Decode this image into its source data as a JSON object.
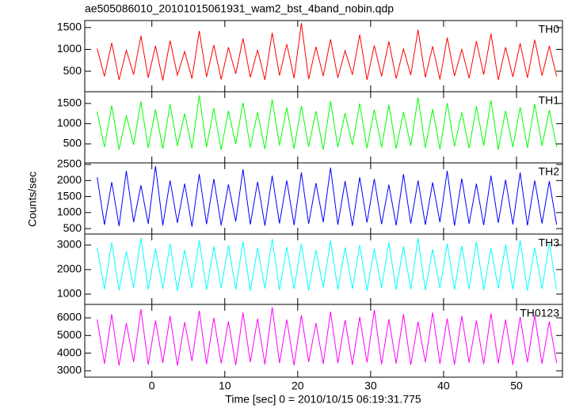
{
  "chart_data": {
    "type": "line",
    "title": "ae505086010_20101015061931_wam2_bst_4band_nobin.qdp",
    "xlabel": "Time [sec] 0 = 2010/10/15 06:19:31.775",
    "ylabel": "Counts/sec",
    "xlim": [
      -9.2,
      56.3
    ],
    "xticks": [
      0,
      10,
      20,
      30,
      40,
      50
    ],
    "x": [
      -7.5,
      -6.5,
      -5.5,
      -4.5,
      -3.5,
      -2.5,
      -1.5,
      -0.5,
      0.5,
      1.5,
      2.5,
      3.5,
      4.5,
      5.5,
      6.5,
      7.5,
      8.5,
      9.5,
      10.5,
      11.5,
      12.5,
      13.5,
      14.5,
      15.5,
      16.5,
      17.5,
      18.5,
      19.5,
      20.5,
      21.5,
      22.5,
      23.5,
      24.5,
      25.5,
      26.5,
      27.5,
      28.5,
      29.5,
      30.5,
      31.5,
      32.5,
      33.5,
      34.5,
      35.5,
      36.5,
      37.5,
      38.5,
      39.5,
      40.5,
      41.5,
      42.5,
      43.5,
      44.5,
      45.5,
      46.5,
      47.5,
      48.5,
      49.5,
      50.5,
      51.5,
      52.5,
      53.5,
      54.5,
      55.5
    ],
    "series": [
      {
        "name": "TH0",
        "color": "#ff0000",
        "ylim": [
          30,
          1660
        ],
        "yticks": [
          500,
          1000,
          1500
        ],
        "values": [
          1020,
          380,
          1150,
          300,
          980,
          420,
          1310,
          350,
          1080,
          290,
          1200,
          410,
          950,
          330,
          1420,
          370,
          1100,
          310,
          1050,
          440,
          1250,
          360,
          990,
          300,
          1380,
          400,
          1120,
          340,
          1600,
          320,
          1060,
          390,
          1230,
          350,
          970,
          420,
          1340,
          300,
          1090,
          380,
          1180,
          330,
          1010,
          410,
          1450,
          360,
          1070,
          310,
          1270,
          390,
          1000,
          340,
          1190,
          420,
          1360,
          300,
          1050,
          370,
          1140,
          350,
          1220,
          400,
          1080,
          380
        ]
      },
      {
        "name": "TH1",
        "color": "#00ff00",
        "ylim": [
          30,
          1790
        ],
        "yticks": [
          500,
          1000,
          1500
        ],
        "values": [
          1300,
          420,
          1450,
          360,
          1200,
          480,
          1550,
          400,
          1350,
          380,
          1480,
          450,
          1250,
          390,
          1700,
          420,
          1380,
          350,
          1320,
          500,
          1520,
          410,
          1280,
          370,
          1600,
          460,
          1400,
          380,
          1440,
          430,
          1310,
          360,
          1560,
          420,
          1260,
          470,
          1500,
          390,
          1350,
          410,
          1470,
          380,
          1290,
          450,
          1650,
          400,
          1360,
          370,
          1510,
          440,
          1280,
          390,
          1430,
          460,
          1580,
          360,
          1320,
          420,
          1410,
          400,
          1490,
          450,
          1340,
          420
        ]
      },
      {
        "name": "TH2",
        "color": "#0000ff",
        "ylim": [
          330,
          2550
        ],
        "yticks": [
          500,
          1000,
          1500,
          2000,
          2500
        ],
        "values": [
          2100,
          620,
          1950,
          580,
          2300,
          700,
          1850,
          650,
          2450,
          600,
          2000,
          680,
          1900,
          560,
          2200,
          640,
          2050,
          600,
          1880,
          720,
          2350,
          630,
          1960,
          590,
          2150,
          660,
          2000,
          610,
          2250,
          650,
          1920,
          700,
          2400,
          620,
          1980,
          580,
          2100,
          690,
          2050,
          640,
          1870,
          600,
          2200,
          660,
          2000,
          620,
          1940,
          700,
          2300,
          590,
          2060,
          650,
          1900,
          610,
          2150,
          680,
          2020,
          630,
          2250,
          600,
          2000,
          660,
          1980,
          620
        ]
      },
      {
        "name": "TH3",
        "color": "#00ffff",
        "ylim": [
          580,
          3450
        ],
        "yticks": [
          1000,
          2000,
          3000
        ],
        "values": [
          2900,
          1200,
          3100,
          1150,
          2750,
          1250,
          3300,
          1180,
          2850,
          1220,
          3050,
          1130,
          2800,
          1260,
          3200,
          1170,
          2950,
          1240,
          3000,
          1190,
          3150,
          1140,
          2880,
          1230,
          3250,
          1160,
          2920,
          1210,
          3050,
          1150,
          2800,
          1270,
          3180,
          1190,
          2900,
          1220,
          3000,
          1140,
          2850,
          1250,
          3100,
          1170,
          2950,
          1200,
          3280,
          1150,
          2830,
          1240,
          3060,
          1180,
          2970,
          1210,
          3140,
          1160,
          2880,
          1230,
          3020,
          1190,
          3200,
          1150,
          2900,
          1220,
          3080,
          1180
        ]
      },
      {
        "name": "TH0123",
        "color": "#ff00ff",
        "ylim": [
          2640,
          6760
        ],
        "yticks": [
          3000,
          4000,
          5000,
          6000
        ],
        "values": [
          5900,
          3400,
          6200,
          3300,
          5700,
          3500,
          6500,
          3350,
          5850,
          3450,
          6100,
          3300,
          5750,
          3550,
          6400,
          3380,
          6000,
          3420,
          5800,
          3320,
          6300,
          3480,
          5950,
          3360,
          6600,
          3440,
          5900,
          3310,
          6150,
          3500,
          5700,
          3390,
          6350,
          3430,
          5880,
          3340,
          6050,
          3470,
          6450,
          3370,
          5920,
          3410,
          6200,
          3330,
          5780,
          3490,
          6300,
          3400,
          5960,
          3350,
          6100,
          3460,
          5850,
          3380,
          6250,
          3420,
          5900,
          3340,
          6050,
          3480,
          6150,
          3400,
          5800,
          3440
        ]
      }
    ]
  }
}
